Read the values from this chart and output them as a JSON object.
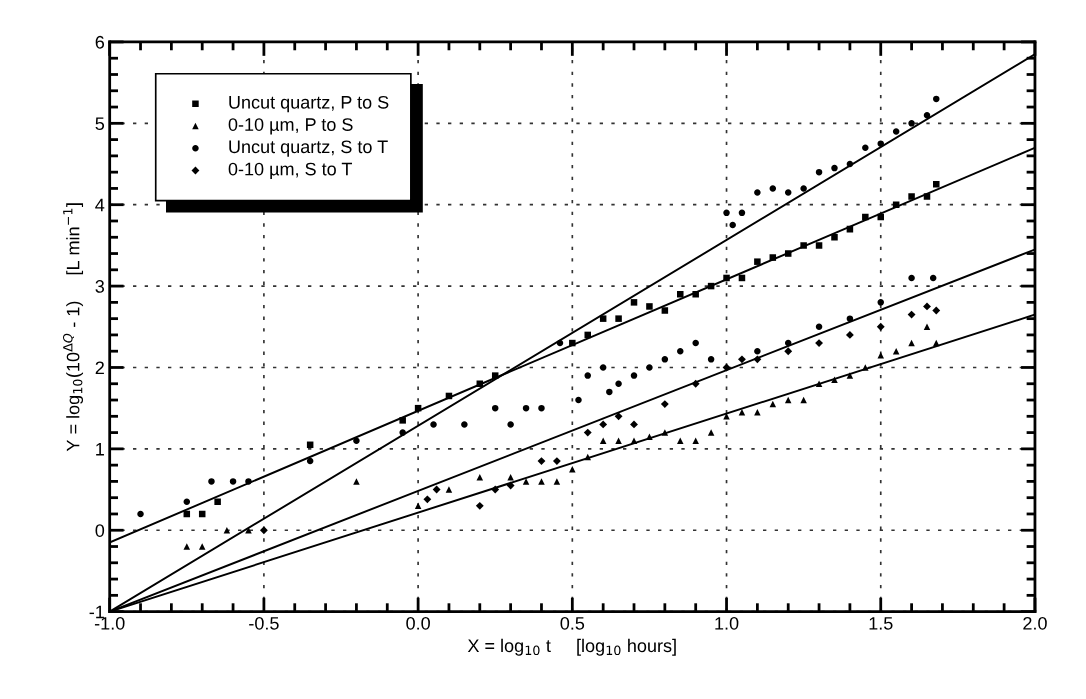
{
  "chart_data": {
    "type": "scatter",
    "xlabel": "X = log$_{10}$ t     [log$_{10}$ hours]",
    "ylabel": "Y = log$_{10}$(10$^{ΔQ}$ - 1)     [L min$^{−1}$]",
    "xlim": [
      -1,
      2
    ],
    "ylim": [
      -1,
      6
    ],
    "xticks": [
      {
        "value": -1,
        "label": "-1.0"
      },
      {
        "value": -0.5,
        "label": "-0.5"
      },
      {
        "value": 0,
        "label": "0.0"
      },
      {
        "value": 0.5,
        "label": "0.5"
      },
      {
        "value": 1,
        "label": "1.0"
      },
      {
        "value": 1.5,
        "label": "1.5"
      },
      {
        "value": 2,
        "label": "2.0"
      }
    ],
    "yticks": [
      -1,
      0,
      1,
      2,
      3,
      4,
      5,
      6
    ],
    "grid": true,
    "legend": "top left",
    "series": [
      {
        "name": "Uncut quartz, P to S",
        "color": "#000000",
        "marker": "square",
        "x": [
          -0.75,
          -0.7,
          -0.65,
          -0.35,
          -0.05,
          0.0,
          0.1,
          0.2,
          0.25,
          0.5,
          0.55,
          0.6,
          0.65,
          0.7,
          0.75,
          0.8,
          0.85,
          0.9,
          0.95,
          1.0,
          1.05,
          1.1,
          1.15,
          1.2,
          1.25,
          1.3,
          1.35,
          1.4,
          1.45,
          1.5,
          1.55,
          1.6,
          1.65,
          1.68
        ],
        "values": [
          0.2,
          0.2,
          0.35,
          1.05,
          1.35,
          1.5,
          1.65,
          1.8,
          1.9,
          2.3,
          2.4,
          2.6,
          2.6,
          2.8,
          2.75,
          2.7,
          2.9,
          2.9,
          3.0,
          3.1,
          3.1,
          3.3,
          3.35,
          3.4,
          3.5,
          3.5,
          3.6,
          3.7,
          3.85,
          3.85,
          4.0,
          4.1,
          4.1,
          4.25
        ]
      },
      {
        "name": "0-10 µm, P to S",
        "color": "#000000",
        "marker": "triangle",
        "x": [
          -0.75,
          -0.7,
          -0.62,
          -0.55,
          -0.2,
          0.0,
          0.1,
          0.2,
          0.3,
          0.35,
          0.4,
          0.45,
          0.5,
          0.55,
          0.6,
          0.65,
          0.7,
          0.75,
          0.8,
          0.85,
          0.9,
          0.95,
          1.0,
          1.05,
          1.1,
          1.15,
          1.2,
          1.25,
          1.3,
          1.35,
          1.4,
          1.45,
          1.5,
          1.55,
          1.6,
          1.65,
          1.68
        ],
        "values": [
          -0.2,
          -0.2,
          0.0,
          0.0,
          0.6,
          0.3,
          0.5,
          0.65,
          0.65,
          0.6,
          0.6,
          0.6,
          0.75,
          0.9,
          1.1,
          1.1,
          1.1,
          1.15,
          1.2,
          1.1,
          1.1,
          1.2,
          1.4,
          1.45,
          1.45,
          1.55,
          1.6,
          1.6,
          1.8,
          1.85,
          1.9,
          2.0,
          2.15,
          2.2,
          2.3,
          2.5,
          2.3
        ]
      },
      {
        "name": "Uncut quartz, S to T",
        "color": "#000000",
        "marker": "circle",
        "x": [
          -0.9,
          -0.75,
          -0.67,
          -0.6,
          -0.55,
          -0.35,
          -0.2,
          -0.05,
          0.05,
          0.15,
          0.25,
          0.3,
          0.35,
          0.4,
          0.46,
          0.52,
          0.55,
          0.6,
          0.62,
          0.65,
          0.7,
          0.75,
          0.8,
          0.85,
          0.9,
          0.95,
          1.0,
          1.02,
          1.05,
          1.1,
          1.15,
          1.2,
          1.25,
          1.3,
          1.35,
          1.4,
          1.45,
          1.5,
          1.55,
          1.6,
          1.65,
          1.68,
          1.1,
          1.2,
          1.3,
          1.4,
          1.5,
          1.6,
          1.67
        ],
        "values": [
          0.2,
          0.35,
          0.6,
          0.6,
          0.6,
          0.85,
          1.1,
          1.2,
          1.3,
          1.3,
          1.5,
          1.3,
          1.5,
          1.5,
          2.3,
          1.6,
          1.9,
          2.0,
          1.7,
          1.8,
          1.9,
          2.0,
          2.1,
          2.2,
          2.3,
          2.1,
          3.9,
          3.75,
          3.9,
          4.15,
          4.2,
          4.15,
          4.2,
          4.4,
          4.45,
          4.5,
          4.7,
          4.75,
          4.9,
          5.0,
          5.1,
          5.3,
          2.2,
          2.3,
          2.5,
          2.6,
          2.8,
          3.1,
          3.1
        ]
      },
      {
        "name": "0-10 µm, S to T",
        "color": "#000000",
        "marker": "diamond",
        "x": [
          -0.5,
          0.03,
          0.06,
          0.2,
          0.25,
          0.3,
          0.4,
          0.45,
          0.55,
          0.6,
          0.65,
          0.7,
          0.8,
          0.9,
          1.0,
          1.05,
          1.1,
          1.2,
          1.3,
          1.4,
          1.5,
          1.6,
          1.65,
          1.68
        ],
        "values": [
          0.0,
          0.38,
          0.5,
          0.3,
          0.5,
          0.55,
          0.85,
          0.85,
          1.2,
          1.3,
          1.4,
          1.3,
          1.55,
          1.8,
          2.0,
          2.1,
          2.1,
          2.2,
          2.3,
          2.4,
          2.5,
          2.65,
          2.75,
          2.7
        ]
      },
      {
        "type": "line",
        "color": "#000000",
        "marker": "none",
        "x": [
          -1,
          2
        ],
        "values": [
          -0.15,
          4.7
        ]
      },
      {
        "type": "line",
        "color": "#000000",
        "marker": "none",
        "x": [
          -1,
          2
        ],
        "values": [
          -1,
          5.85
        ]
      },
      {
        "type": "line",
        "color": "#000000",
        "marker": "none",
        "x": [
          -1,
          2
        ],
        "values": [
          -1,
          3.45
        ]
      },
      {
        "type": "line",
        "color": "#000000",
        "marker": "none",
        "x": [
          -1,
          2
        ],
        "values": [
          -1,
          2.65
        ]
      }
    ]
  }
}
